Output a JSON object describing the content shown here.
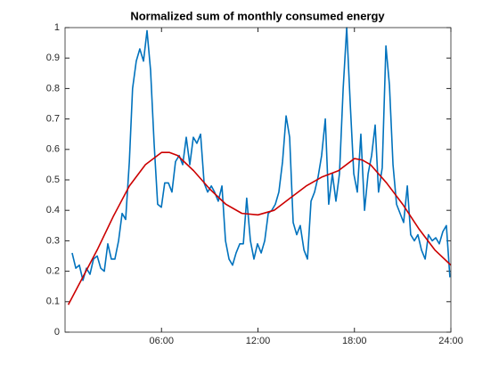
{
  "chart_data": {
    "type": "line",
    "title": "Normalized sum of monthly consumed energy",
    "series": [
      {
        "color": "#0072bd",
        "x": [
          0.44,
          0.67,
          0.89,
          1.11,
          1.33,
          1.55,
          1.77,
          2.0,
          2.22,
          2.44,
          2.66,
          2.88,
          3.1,
          3.33,
          3.55,
          3.77,
          4.0,
          4.2,
          4.43,
          4.65,
          4.88,
          5.1,
          5.32,
          5.54,
          5.76,
          5.99,
          6.2,
          6.43,
          6.65,
          6.87,
          7.1,
          7.32,
          7.54,
          7.76,
          7.98,
          8.2,
          8.43,
          8.65,
          8.87,
          9.1,
          9.3,
          9.53,
          9.76,
          9.98,
          10.2,
          10.42,
          10.64,
          10.87,
          11.09,
          11.3,
          11.53,
          11.75,
          11.97,
          12.2,
          12.42,
          12.64,
          12.86,
          13.08,
          13.3,
          13.53,
          13.75,
          13.97,
          14.19,
          14.41,
          14.63,
          14.86,
          15.08,
          15.3,
          15.52,
          15.74,
          15.96,
          16.19,
          16.4,
          16.63,
          16.85,
          17.07,
          17.3,
          17.52,
          17.74,
          17.96,
          18.18,
          18.4,
          18.63,
          18.85,
          19.07,
          19.29,
          19.5,
          19.73,
          19.96,
          20.18,
          20.4,
          20.62,
          20.84,
          21.06,
          21.29,
          21.5,
          21.73,
          21.95,
          22.17,
          22.4,
          22.6,
          22.84,
          23.06,
          23.28,
          23.5,
          23.72,
          23.94
        ],
        "values": [
          0.26,
          0.21,
          0.22,
          0.17,
          0.21,
          0.19,
          0.24,
          0.25,
          0.21,
          0.2,
          0.29,
          0.24,
          0.24,
          0.3,
          0.39,
          0.37,
          0.56,
          0.8,
          0.89,
          0.93,
          0.89,
          0.99,
          0.86,
          0.62,
          0.42,
          0.41,
          0.49,
          0.49,
          0.46,
          0.56,
          0.58,
          0.55,
          0.64,
          0.55,
          0.64,
          0.62,
          0.65,
          0.49,
          0.46,
          0.48,
          0.46,
          0.43,
          0.48,
          0.3,
          0.24,
          0.22,
          0.26,
          0.29,
          0.29,
          0.44,
          0.3,
          0.24,
          0.29,
          0.26,
          0.3,
          0.39,
          0.4,
          0.42,
          0.46,
          0.56,
          0.71,
          0.64,
          0.36,
          0.32,
          0.35,
          0.27,
          0.24,
          0.43,
          0.46,
          0.51,
          0.58,
          0.7,
          0.42,
          0.52,
          0.43,
          0.52,
          0.8,
          1.0,
          0.75,
          0.52,
          0.46,
          0.65,
          0.4,
          0.52,
          0.58,
          0.68,
          0.46,
          0.54,
          0.94,
          0.81,
          0.55,
          0.42,
          0.39,
          0.36,
          0.48,
          0.32,
          0.3,
          0.32,
          0.27,
          0.24,
          0.32,
          0.3,
          0.31,
          0.29,
          0.33,
          0.35,
          0.18
        ]
      },
      {
        "color": "#cc0000",
        "x": [
          0.2,
          1,
          2,
          3,
          4,
          5,
          6,
          6.5,
          7,
          8,
          9,
          10,
          11,
          12,
          13,
          14,
          15,
          16,
          17,
          18,
          18.5,
          19,
          20,
          21,
          22,
          23,
          24
        ],
        "values": [
          0.09,
          0.17,
          0.27,
          0.38,
          0.48,
          0.55,
          0.59,
          0.59,
          0.58,
          0.53,
          0.47,
          0.42,
          0.39,
          0.385,
          0.4,
          0.44,
          0.48,
          0.51,
          0.53,
          0.57,
          0.565,
          0.55,
          0.49,
          0.42,
          0.34,
          0.27,
          0.22
        ]
      }
    ],
    "xlim": [
      0,
      24
    ],
    "xticks": [
      {
        "value": 6,
        "label": "06:00"
      },
      {
        "value": 12,
        "label": "12:00"
      },
      {
        "value": 18,
        "label": "18:00"
      },
      {
        "value": 24,
        "label": "24:00"
      }
    ],
    "ylim": [
      0,
      1
    ],
    "yticks": [
      0,
      0.1,
      0.2,
      0.3,
      0.4,
      0.5,
      0.6,
      0.7,
      0.8,
      0.9,
      1
    ]
  }
}
